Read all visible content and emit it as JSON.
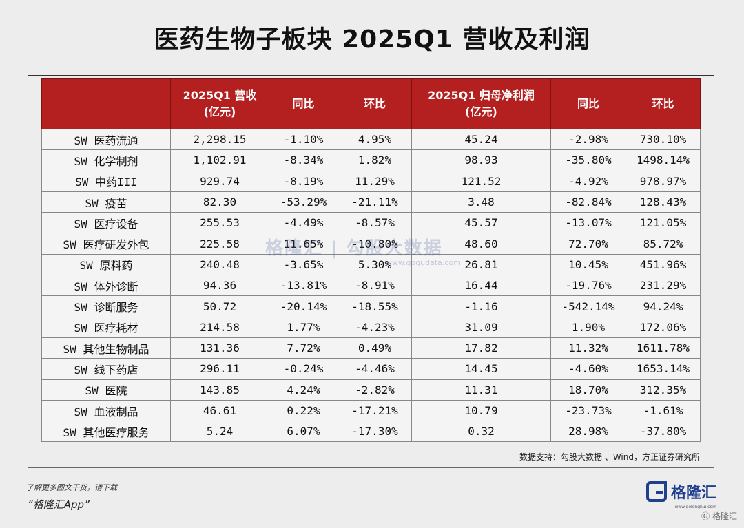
{
  "title": "医药生物子板块 2025Q1 营收及利润",
  "table": {
    "headers": [
      [
        "",
        ""
      ],
      [
        "2025Q1 营收",
        "(亿元)"
      ],
      [
        "同比",
        ""
      ],
      [
        "环比",
        ""
      ],
      [
        "2025Q1 归母净利润",
        "(亿元)"
      ],
      [
        "同比",
        ""
      ],
      [
        "环比",
        ""
      ]
    ],
    "rows": [
      [
        "SW 医药流通",
        "2,298.15",
        "-1.10%",
        "4.95%",
        "45.24",
        "-2.98%",
        "730.10%"
      ],
      [
        "SW 化学制剂",
        "1,102.91",
        "-8.34%",
        "1.82%",
        "98.93",
        "-35.80%",
        "1498.14%"
      ],
      [
        "SW 中药III",
        "929.74",
        "-8.19%",
        "11.29%",
        "121.52",
        "-4.92%",
        "978.97%"
      ],
      [
        "SW 疫苗",
        "82.30",
        "-53.29%",
        "-21.11%",
        "3.48",
        "-82.84%",
        "128.43%"
      ],
      [
        "SW 医疗设备",
        "255.53",
        "-4.49%",
        "-8.57%",
        "45.57",
        "-13.07%",
        "121.05%"
      ],
      [
        "SW 医疗研发外包",
        "225.58",
        "11.65%",
        "-10.80%",
        "48.60",
        "72.70%",
        "85.72%"
      ],
      [
        "SW 原料药",
        "240.48",
        "-3.65%",
        "5.30%",
        "26.81",
        "10.45%",
        "451.96%"
      ],
      [
        "SW 体外诊断",
        "94.36",
        "-13.81%",
        "-8.91%",
        "16.44",
        "-19.76%",
        "231.29%"
      ],
      [
        "SW 诊断服务",
        "50.72",
        "-20.14%",
        "-18.55%",
        "-1.16",
        "-542.14%",
        "94.24%"
      ],
      [
        "SW 医疗耗材",
        "214.58",
        "1.77%",
        "-4.23%",
        "31.09",
        "1.90%",
        "172.06%"
      ],
      [
        "SW 其他生物制品",
        "131.36",
        "7.72%",
        "0.49%",
        "17.82",
        "11.32%",
        "1611.78%"
      ],
      [
        "SW 线下药店",
        "296.11",
        "-0.24%",
        "-4.46%",
        "14.45",
        "-4.60%",
        "1653.14%"
      ],
      [
        "SW 医院",
        "143.85",
        "4.24%",
        "-2.82%",
        "11.31",
        "18.70%",
        "312.35%"
      ],
      [
        "SW 血液制品",
        "46.61",
        "0.22%",
        "-17.21%",
        "10.79",
        "-23.73%",
        "-1.61%"
      ],
      [
        "SW 其他医疗服务",
        "5.24",
        "6.07%",
        "-17.30%",
        "0.32",
        "28.98%",
        "-37.80%"
      ]
    ]
  },
  "watermark": {
    "text": "格隆汇 | 勾股大数据",
    "url": "www.gogudata.com"
  },
  "source": "数据支持：勾股大数据 、Wind，方正证券研究所",
  "footer": {
    "note": "了解更多图文干货，请下载",
    "app": "“格隆汇App”"
  },
  "logo": {
    "name": "格隆汇",
    "url": "www.gelonghui.com"
  },
  "badge": "Ⓖ 格隆汇",
  "colors": {
    "header_bg": "#b41f1f",
    "brand": "#1f3f8f"
  }
}
